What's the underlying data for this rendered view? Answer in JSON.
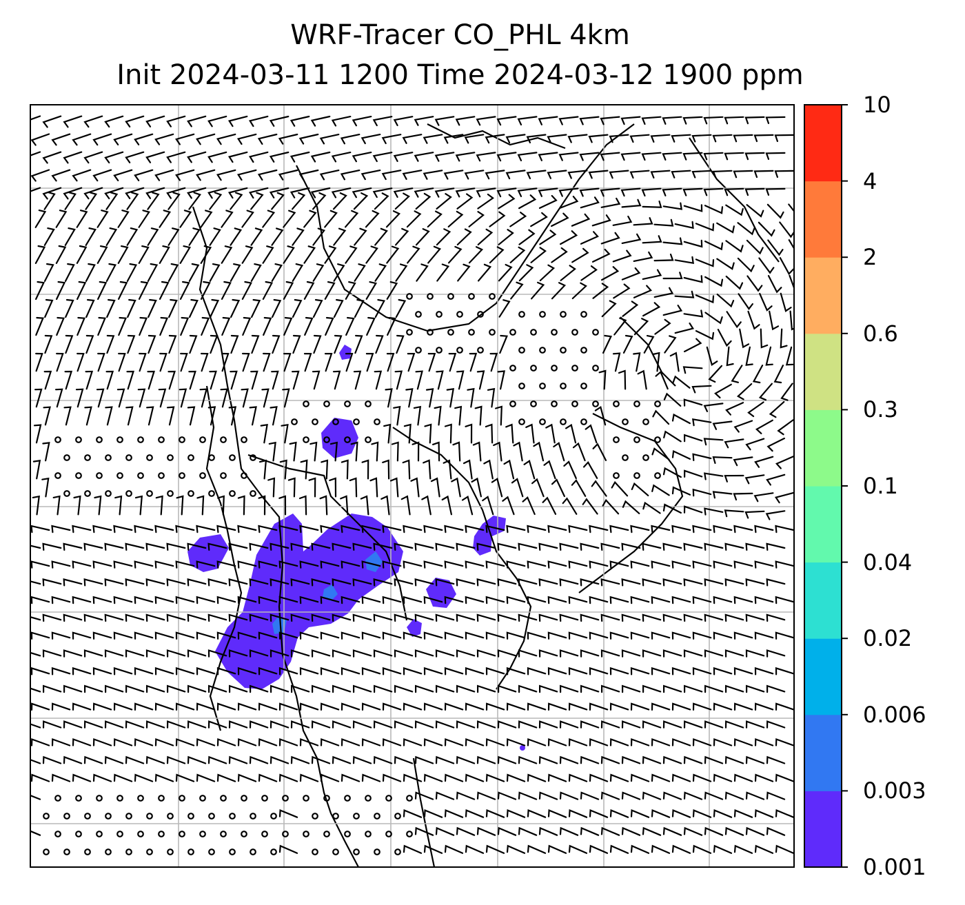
{
  "title": {
    "line1": "WRF-Tracer CO_PHL 4km",
    "line2": "Init 2024-03-11 1200 Time 2024-03-12 1900 ppm"
  },
  "colorbar": {
    "levels": [
      "0.001",
      "0.003",
      "0.006",
      "0.02",
      "0.04",
      "0.1",
      "0.3",
      "0.6",
      "2",
      "4",
      "10"
    ],
    "colors": [
      "#5f2bfb",
      "#3178f2",
      "#00b0ea",
      "#2de0d2",
      "#62f9ad",
      "#8dfa8a",
      "#cfe283",
      "#ffad60",
      "#ff7a3a",
      "#ff2a14"
    ]
  },
  "map": {
    "overlay": "wind barbs",
    "gridlines": true,
    "tracer_color": "#5f2bfb",
    "tracer_high_color": "#3178f2"
  }
}
